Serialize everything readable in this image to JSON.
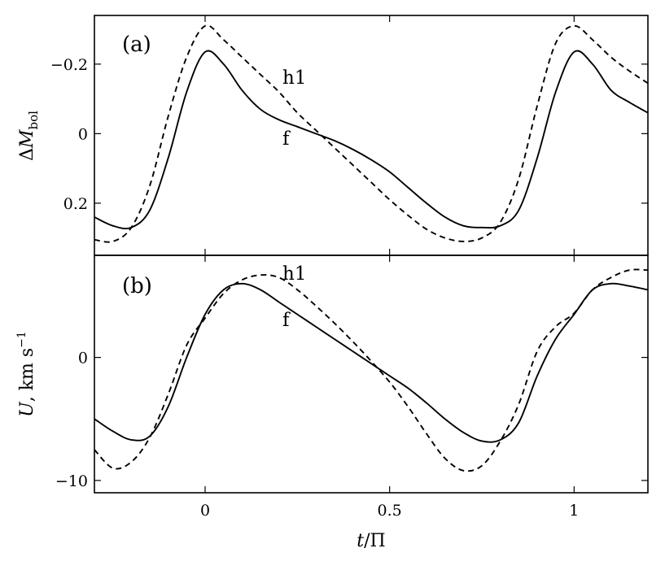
{
  "chart_data": [
    {
      "type": "line",
      "panel_label": "(a)",
      "ylabel_main": "ΔM",
      "ylabel_sub": "bol",
      "ylabel_text": "ΔMbol",
      "y_inverted": true,
      "xlim": [
        -0.3,
        1.2
      ],
      "ylim": [
        -0.34,
        0.35
      ],
      "yticks": [
        -0.2,
        0,
        0.2
      ],
      "ytick_labels": [
        "−0.2",
        "0",
        "0.2"
      ],
      "xticks": [
        0,
        0.5,
        1
      ],
      "series": [
        {
          "name": "f",
          "style": "solid",
          "x": [
            -0.3,
            -0.25,
            -0.2,
            -0.15,
            -0.1,
            -0.05,
            0,
            0.05,
            0.1,
            0.15,
            0.2,
            0.25,
            0.3,
            0.35,
            0.4,
            0.45,
            0.5,
            0.55,
            0.6,
            0.65,
            0.7,
            0.75,
            0.8,
            0.85,
            0.9,
            0.95,
            1.0,
            1.05,
            1.1,
            1.15,
            1.2
          ],
          "y": [
            0.24,
            0.265,
            0.27,
            0.22,
            0.07,
            -0.12,
            -0.235,
            -0.2,
            -0.125,
            -0.07,
            -0.04,
            -0.02,
            0.0,
            0.02,
            0.045,
            0.075,
            0.11,
            0.155,
            0.2,
            0.24,
            0.265,
            0.27,
            0.265,
            0.22,
            0.07,
            -0.12,
            -0.235,
            -0.2,
            -0.125,
            -0.09,
            -0.06
          ]
        },
        {
          "name": "h1",
          "style": "dashed",
          "x": [
            -0.3,
            -0.25,
            -0.2,
            -0.15,
            -0.1,
            -0.05,
            0,
            0.05,
            0.1,
            0.15,
            0.2,
            0.25,
            0.3,
            0.35,
            0.4,
            0.45,
            0.5,
            0.55,
            0.6,
            0.65,
            0.7,
            0.75,
            0.8,
            0.85,
            0.9,
            0.95,
            1.0,
            1.05,
            1.1,
            1.15,
            1.2
          ],
          "y": [
            0.305,
            0.31,
            0.27,
            0.15,
            -0.05,
            -0.22,
            -0.31,
            -0.27,
            -0.22,
            -0.17,
            -0.12,
            -0.06,
            -0.01,
            0.04,
            0.09,
            0.14,
            0.19,
            0.235,
            0.275,
            0.3,
            0.31,
            0.3,
            0.255,
            0.13,
            -0.08,
            -0.26,
            -0.31,
            -0.27,
            -0.22,
            -0.18,
            -0.145
          ]
        }
      ],
      "annotations": [
        "h1",
        "f"
      ]
    },
    {
      "type": "line",
      "panel_label": "(b)",
      "ylabel_text": "U, km s⁻¹",
      "ylabel_main": "U",
      "ylabel_rest": ", km s",
      "ylabel_sup": "−1",
      "xlabel_main": "t",
      "xlabel_rest": "/Π",
      "xlabel_text": "t/Π",
      "xlim": [
        -0.3,
        1.2
      ],
      "ylim": [
        -11,
        8.3
      ],
      "yticks": [
        0,
        -10
      ],
      "ytick_labels": [
        "0",
        "−10"
      ],
      "xticks": [
        0,
        0.5,
        1
      ],
      "xtick_labels": [
        "0",
        "0.5",
        "1"
      ],
      "series": [
        {
          "name": "f",
          "style": "solid",
          "x": [
            -0.3,
            -0.25,
            -0.2,
            -0.15,
            -0.1,
            -0.05,
            0,
            0.05,
            0.1,
            0.15,
            0.2,
            0.25,
            0.3,
            0.35,
            0.4,
            0.45,
            0.5,
            0.55,
            0.6,
            0.65,
            0.7,
            0.75,
            0.8,
            0.85,
            0.9,
            0.95,
            1.0,
            1.05,
            1.1,
            1.15,
            1.2
          ],
          "y": [
            -5.0,
            -6.0,
            -6.7,
            -6.4,
            -4.0,
            0.0,
            3.5,
            5.5,
            6.0,
            5.5,
            4.5,
            3.5,
            2.5,
            1.5,
            0.5,
            -0.5,
            -1.5,
            -2.5,
            -3.7,
            -5.0,
            -6.1,
            -6.8,
            -6.7,
            -5.3,
            -1.5,
            1.5,
            3.5,
            5.5,
            6.0,
            5.8,
            5.5
          ]
        },
        {
          "name": "h1",
          "style": "dashed",
          "x": [
            -0.3,
            -0.25,
            -0.2,
            -0.15,
            -0.1,
            -0.05,
            0,
            0.05,
            0.1,
            0.15,
            0.2,
            0.25,
            0.3,
            0.35,
            0.4,
            0.45,
            0.5,
            0.55,
            0.6,
            0.65,
            0.7,
            0.75,
            0.8,
            0.85,
            0.9,
            0.95,
            1.0,
            1.05,
            1.1,
            1.15,
            1.2
          ],
          "y": [
            -7.5,
            -9.0,
            -8.5,
            -6.5,
            -3.0,
            1.0,
            3.2,
            5.2,
            6.3,
            6.7,
            6.5,
            5.5,
            4.2,
            2.8,
            1.3,
            -0.3,
            -2.0,
            -4.0,
            -6.2,
            -8.2,
            -9.2,
            -8.8,
            -6.8,
            -3.8,
            0.5,
            2.5,
            3.6,
            5.5,
            6.5,
            7.1,
            7.1
          ]
        }
      ],
      "annotations": [
        "h1",
        "f"
      ]
    }
  ]
}
